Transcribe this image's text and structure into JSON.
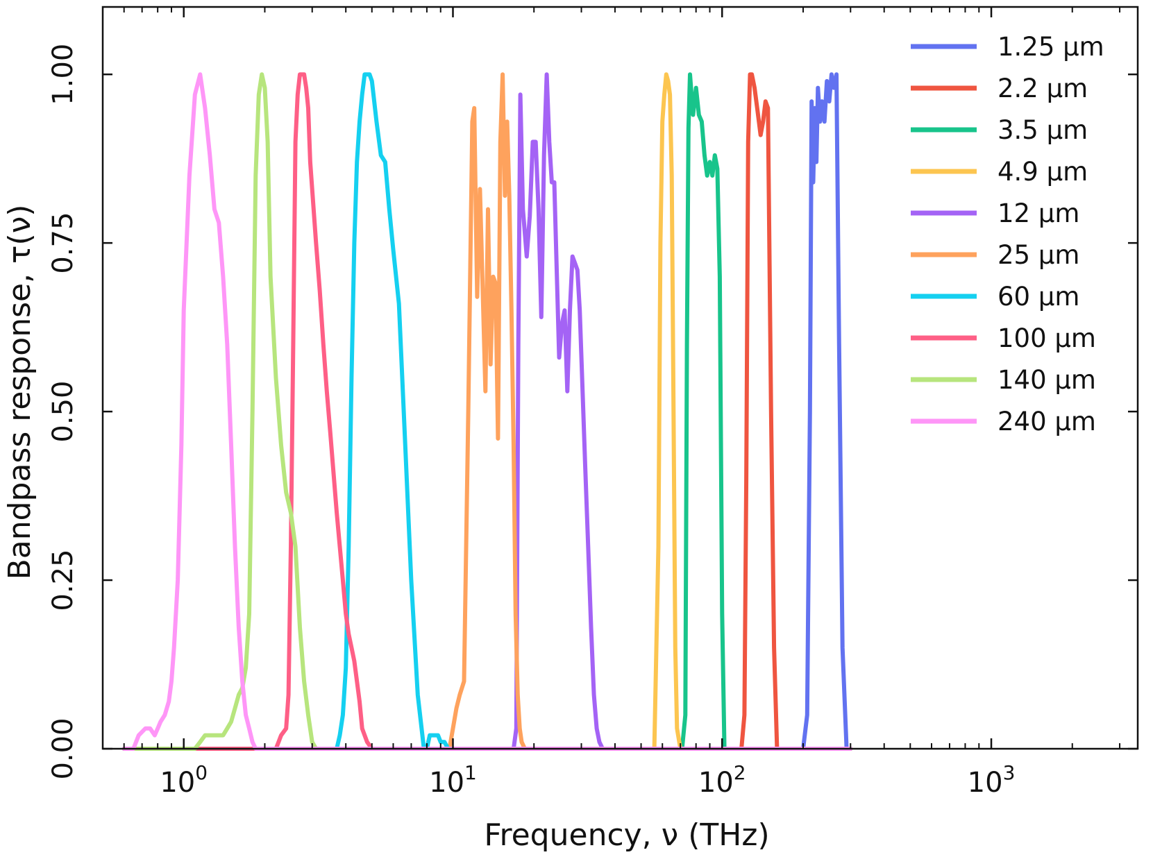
{
  "chart_data": {
    "type": "line",
    "xlabel": "Frequency, ν (THz)",
    "ylabel": "Bandpass response, τ(ν)",
    "xscale": "log",
    "xlim": [
      0.5,
      3500
    ],
    "ylim": [
      0,
      1.1
    ],
    "yticks": [
      "0.00",
      "0.25",
      "0.50",
      "0.75",
      "1.00"
    ],
    "ytick_values": [
      0,
      0.25,
      0.5,
      0.75,
      1.0
    ],
    "xticks": [
      {
        "value": 1,
        "base": "10",
        "exp": "0"
      },
      {
        "value": 10,
        "base": "10",
        "exp": "1"
      },
      {
        "value": 100,
        "base": "10",
        "exp": "2"
      },
      {
        "value": 1000,
        "base": "10",
        "exp": "3"
      }
    ],
    "legend_position": "top-right",
    "series": [
      {
        "name": "1.25 μm",
        "color": "#6272f0",
        "x": [
          0.6,
          200,
          207,
          212,
          215,
          218,
          221,
          224,
          227,
          231,
          235,
          240,
          245,
          250,
          255,
          260,
          266,
          272,
          280,
          290,
          300
        ],
        "y": [
          0,
          0,
          0.05,
          0.5,
          0.96,
          0.84,
          0.95,
          0.87,
          0.98,
          0.93,
          0.96,
          0.93,
          0.99,
          0.96,
          1.0,
          0.98,
          1.0,
          0.6,
          0.15,
          0,
          0
        ]
      },
      {
        "name": "2.2 μm",
        "color": "#ef5540",
        "x": [
          0.6,
          118,
          121,
          123,
          125,
          127,
          129,
          132,
          135,
          139,
          142,
          145,
          148,
          152,
          156,
          160,
          300
        ],
        "y": [
          0,
          0,
          0.05,
          0.4,
          0.9,
          1.0,
          1.0,
          0.98,
          0.95,
          0.91,
          0.93,
          0.96,
          0.95,
          0.5,
          0.15,
          0,
          0
        ]
      },
      {
        "name": "3.5 μm",
        "color": "#18c48b",
        "x": [
          0.6,
          71,
          73,
          74,
          75,
          76,
          78,
          80,
          82,
          84,
          86,
          88,
          90,
          92,
          94,
          96,
          98,
          100,
          102,
          300
        ],
        "y": [
          0,
          0,
          0.05,
          0.6,
          0.92,
          1.0,
          0.94,
          0.98,
          0.94,
          0.93,
          0.88,
          0.85,
          0.87,
          0.85,
          0.88,
          0.86,
          0.7,
          0.2,
          0,
          0
        ]
      },
      {
        "name": "4.9 μm",
        "color": "#fcc550",
        "x": [
          0.6,
          56,
          58,
          59,
          60,
          61,
          62,
          63,
          64,
          65,
          66,
          67,
          68,
          70,
          300
        ],
        "y": [
          0,
          0,
          0.3,
          0.75,
          0.93,
          0.97,
          1.0,
          0.99,
          0.97,
          0.85,
          0.5,
          0.15,
          0.03,
          0,
          0
        ]
      },
      {
        "name": "12 μm",
        "color": "#a463f5",
        "x": [
          0.6,
          16.8,
          17.2,
          17.5,
          17.8,
          18.2,
          18.8,
          19.3,
          19.8,
          20.3,
          20.8,
          21.3,
          21.8,
          22.3,
          22.8,
          23.3,
          23.8,
          24.3,
          24.8,
          25.4,
          26,
          26.6,
          27.2,
          27.8,
          28.4,
          29,
          29.6,
          30.2,
          31,
          31.8,
          32.6,
          33.4,
          34.2,
          35,
          36,
          37,
          38,
          39,
          40,
          300
        ],
        "y": [
          0,
          0,
          0.03,
          0.6,
          0.97,
          0.8,
          0.73,
          0.79,
          0.9,
          0.9,
          0.8,
          0.64,
          0.88,
          1.0,
          0.9,
          0.84,
          0.84,
          0.71,
          0.58,
          0.63,
          0.65,
          0.53,
          0.65,
          0.73,
          0.72,
          0.71,
          0.65,
          0.55,
          0.42,
          0.3,
          0.18,
          0.08,
          0.03,
          0.01,
          0,
          0,
          0,
          0,
          0,
          0
        ]
      },
      {
        "name": "25 μm",
        "color": "#fea25d",
        "x": [
          0.6,
          9.7,
          10.0,
          10.3,
          10.6,
          11.0,
          11.4,
          11.8,
          12.0,
          12.3,
          12.6,
          12.9,
          13.2,
          13.5,
          13.8,
          14.1,
          14.4,
          14.7,
          15.0,
          15.3,
          15.6,
          15.9,
          16.2,
          16.5,
          16.8,
          17.1,
          17.4,
          17.7,
          18.0,
          18.5,
          19.0,
          19.5,
          20,
          300
        ],
        "y": [
          0,
          0,
          0.03,
          0.06,
          0.08,
          0.1,
          0.5,
          0.93,
          0.95,
          0.67,
          0.83,
          0.68,
          0.53,
          0.8,
          0.57,
          0.7,
          0.69,
          0.46,
          0.9,
          1.0,
          0.82,
          0.93,
          0.82,
          0.65,
          0.45,
          0.2,
          0.08,
          0.03,
          0.01,
          0,
          0,
          0,
          0,
          0
        ]
      },
      {
        "name": "60 μm",
        "color": "#15d0f0",
        "x": [
          0.6,
          3.7,
          3.8,
          3.9,
          4.0,
          4.1,
          4.2,
          4.3,
          4.4,
          4.5,
          4.6,
          4.7,
          4.8,
          4.9,
          5.0,
          5.2,
          5.4,
          5.6,
          5.8,
          6.0,
          6.3,
          6.6,
          7.0,
          7.4,
          7.8,
          8.0,
          8.2,
          8.4,
          8.6,
          8.8,
          9.0,
          9.3,
          9.6,
          10.0,
          300
        ],
        "y": [
          0,
          0,
          0.02,
          0.05,
          0.12,
          0.3,
          0.55,
          0.75,
          0.87,
          0.93,
          0.97,
          1.0,
          1.0,
          1.0,
          0.99,
          0.93,
          0.88,
          0.87,
          0.8,
          0.74,
          0.66,
          0.48,
          0.25,
          0.08,
          0,
          0,
          0.02,
          0.02,
          0.02,
          0.02,
          0.01,
          0.01,
          0,
          0,
          0
        ]
      },
      {
        "name": "100 μm",
        "color": "#fe5f86",
        "x": [
          0.6,
          2.2,
          2.25,
          2.3,
          2.4,
          2.45,
          2.5,
          2.55,
          2.6,
          2.65,
          2.7,
          2.75,
          2.8,
          2.85,
          2.9,
          2.95,
          3.0,
          3.1,
          3.2,
          3.3,
          3.4,
          3.5,
          3.6,
          3.7,
          3.8,
          3.9,
          4.0,
          4.1,
          4.2,
          4.3,
          4.4,
          4.5,
          4.6,
          4.8,
          5.0,
          300
        ],
        "y": [
          0,
          0,
          0.01,
          0.02,
          0.03,
          0.08,
          0.3,
          0.6,
          0.9,
          0.97,
          1.0,
          1.0,
          1.0,
          0.98,
          0.95,
          0.87,
          0.83,
          0.75,
          0.68,
          0.6,
          0.53,
          0.47,
          0.41,
          0.35,
          0.3,
          0.25,
          0.2,
          0.17,
          0.15,
          0.13,
          0.1,
          0.07,
          0.03,
          0.01,
          0,
          0
        ]
      },
      {
        "name": "140 μm",
        "color": "#b7e57d",
        "x": [
          0.6,
          0.7,
          0.8,
          0.9,
          1.0,
          1.05,
          1.1,
          1.15,
          1.2,
          1.3,
          1.4,
          1.45,
          1.5,
          1.55,
          1.6,
          1.65,
          1.7,
          1.75,
          1.8,
          1.85,
          1.9,
          1.95,
          2.0,
          2.05,
          2.1,
          2.2,
          2.3,
          2.4,
          2.5,
          2.6,
          2.7,
          2.8,
          2.9,
          3.0,
          3.1,
          300
        ],
        "y": [
          0,
          0,
          0,
          0,
          0,
          0,
          0,
          0.01,
          0.02,
          0.02,
          0.02,
          0.03,
          0.04,
          0.06,
          0.08,
          0.09,
          0.12,
          0.2,
          0.5,
          0.85,
          0.97,
          1.0,
          0.98,
          0.9,
          0.7,
          0.55,
          0.45,
          0.38,
          0.35,
          0.3,
          0.18,
          0.1,
          0.05,
          0.01,
          0,
          0
        ]
      },
      {
        "name": "240 μm",
        "color": "#fe96f7",
        "x": [
          0.6,
          0.65,
          0.68,
          0.72,
          0.75,
          0.78,
          0.8,
          0.82,
          0.85,
          0.88,
          0.9,
          0.92,
          0.95,
          0.98,
          1.0,
          1.05,
          1.1,
          1.15,
          1.2,
          1.25,
          1.3,
          1.35,
          1.4,
          1.45,
          1.5,
          1.55,
          1.6,
          1.65,
          1.7,
          1.75,
          1.8,
          1.85,
          1.9,
          2.0,
          300
        ],
        "y": [
          0,
          0,
          0.02,
          0.03,
          0.03,
          0.02,
          0.03,
          0.04,
          0.05,
          0.07,
          0.1,
          0.15,
          0.25,
          0.45,
          0.65,
          0.85,
          0.97,
          1.0,
          0.95,
          0.88,
          0.8,
          0.78,
          0.7,
          0.6,
          0.45,
          0.3,
          0.18,
          0.1,
          0.05,
          0.03,
          0.01,
          0,
          0,
          0,
          0
        ]
      }
    ]
  }
}
